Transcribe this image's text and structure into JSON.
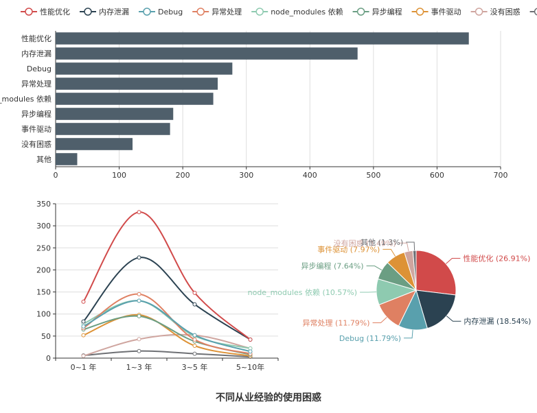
{
  "colors": {
    "bar": "#4f5f6b",
    "axis": "#333333",
    "grid": "#dddddd",
    "palette": [
      "#d14a4a",
      "#2b4251",
      "#59a0ad",
      "#df8062",
      "#8ecab0",
      "#6b9e83",
      "#dd9236",
      "#cfa59f",
      "#6e7074"
    ]
  },
  "chart_data": [
    {
      "type": "bar",
      "orientation": "horizontal",
      "categories": [
        "性能优化",
        "内存泄漏",
        "Debug",
        "异常处理",
        "node_modules 依赖",
        "异步编程",
        "事件驱动",
        "没有困惑",
        "其他"
      ],
      "values": [
        650,
        475,
        278,
        255,
        248,
        185,
        180,
        121,
        34
      ],
      "xlim": [
        0,
        700
      ],
      "xticks": [
        0,
        100,
        200,
        300,
        400,
        500,
        600,
        700
      ],
      "legend": [
        "性能优化",
        "内存泄漏",
        "Debug",
        "异常处理",
        "node_modules 依赖",
        "异步编程",
        "事件驱动",
        "没有困惑",
        "其他"
      ],
      "legend_position": "top",
      "grid": true
    },
    {
      "type": "line",
      "smooth": true,
      "categories": [
        "0~1 年",
        "1~3 年",
        "3~5 年",
        "5~10年"
      ],
      "ylim": [
        0,
        350
      ],
      "yticks": [
        0,
        50,
        100,
        150,
        200,
        250,
        300,
        350
      ],
      "grid": true,
      "series": [
        {
          "name": "性能优化",
          "values": [
            128,
            331,
            148,
            42
          ]
        },
        {
          "name": "内存泄漏",
          "values": [
            83,
            228,
            122,
            42
          ]
        },
        {
          "name": "Debug",
          "values": [
            72,
            130,
            52,
            15
          ]
        },
        {
          "name": "异常处理",
          "values": [
            68,
            145,
            42,
            10
          ]
        },
        {
          "name": "node_modules 依赖",
          "values": [
            78,
            130,
            50,
            22
          ]
        },
        {
          "name": "异步编程",
          "values": [
            65,
            95,
            38,
            8
          ]
        },
        {
          "name": "事件驱动",
          "values": [
            52,
            98,
            28,
            5
          ]
        },
        {
          "name": "没有困惑",
          "values": [
            5,
            43,
            52,
            22
          ]
        },
        {
          "name": "其他",
          "values": [
            6,
            16,
            10,
            3
          ]
        }
      ]
    },
    {
      "type": "pie",
      "slices": [
        {
          "name": "性能优化",
          "percent": 26.91,
          "label": "性能优化 (26.91%)"
        },
        {
          "name": "内存泄漏",
          "percent": 18.54,
          "label": "内存泄漏 (18.54%)"
        },
        {
          "name": "Debug",
          "percent": 11.79,
          "label": "Debug (11.79%)"
        },
        {
          "name": "异常处理",
          "percent": 11.79,
          "label": "异常处理 (11.79%)"
        },
        {
          "name": "node_modules 依赖",
          "percent": 10.57,
          "label": "node_modules 依赖 (10.57%)"
        },
        {
          "name": "异步编程",
          "percent": 7.64,
          "label": "异步编程 (7.64%)"
        },
        {
          "name": "事件驱动",
          "percent": 7.97,
          "label": "事件驱动 (7.97%)"
        },
        {
          "name": "没有困惑",
          "percent": 3.49,
          "label": "没有困惑 (3.49%)"
        },
        {
          "name": "其他",
          "percent": 1.3,
          "label": "其他 (1.3%)"
        }
      ]
    }
  ],
  "title": "不同从业经验的使用困惑"
}
